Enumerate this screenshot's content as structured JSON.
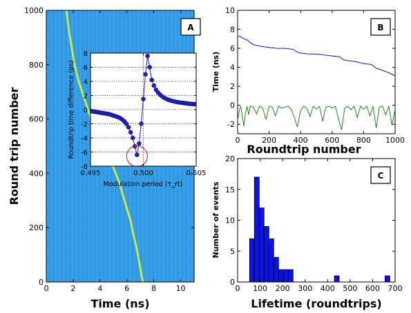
{
  "colors": {
    "heatmap_bg": "#2e9ae6",
    "trace": "#c9e84a",
    "blue": "#1414e0",
    "green": "#1f8a1f",
    "bar": "#0a14e6",
    "marker": "#2020c8",
    "circle": "#e03030"
  },
  "chart_data": [
    {
      "panel": "A",
      "type": "heatmap",
      "xlabel": "Time (ns)",
      "ylabel": "Round trip number",
      "xlim": [
        0,
        11
      ],
      "ylim": [
        0,
        1000
      ],
      "xticks": [
        "0",
        "2",
        "4",
        "6",
        "8",
        "10"
      ],
      "yticks": [
        "0",
        "200",
        "400",
        "600",
        "800",
        "1000"
      ],
      "trace": {
        "x": [
          1.5,
          1.6,
          1.7,
          1.9,
          2.1,
          2.4,
          2.8,
          3.2,
          3.6,
          4.0,
          4.5,
          5.0,
          5.4,
          5.7,
          6.0,
          6.3,
          6.5,
          6.7,
          6.85,
          7.0,
          7.1,
          7.2
        ],
        "y": [
          1000,
          960,
          920,
          860,
          800,
          740,
          680,
          620,
          570,
          520,
          470,
          420,
          370,
          320,
          270,
          220,
          170,
          130,
          90,
          50,
          20,
          0
        ]
      },
      "inset": {
        "xlabel": "Modulation period (τ_rt)",
        "ylabel": "Roundtrip time difference (ps)",
        "xlim": [
          0.495,
          0.505
        ],
        "ylim": [
          -8,
          8
        ],
        "xticks": [
          "0.495",
          "0.500",
          "0.505"
        ],
        "yticks": [
          "8",
          "6",
          "4",
          "2",
          "0",
          "-2",
          "-4",
          "-6",
          "-8"
        ],
        "grid": "dotted",
        "x": [
          0.495,
          0.4952,
          0.4954,
          0.4956,
          0.4958,
          0.496,
          0.4962,
          0.4964,
          0.4966,
          0.4968,
          0.497,
          0.4972,
          0.4974,
          0.4976,
          0.4978,
          0.498,
          0.4982,
          0.4984,
          0.4986,
          0.4988,
          0.499,
          0.4992,
          0.4994,
          0.4996,
          0.4998,
          0.5,
          0.5002,
          0.5004,
          0.5006,
          0.5008,
          0.501,
          0.5012,
          0.5014,
          0.5016,
          0.5018,
          0.502,
          0.5022,
          0.5024,
          0.5026,
          0.5028,
          0.503,
          0.5032,
          0.5034,
          0.5036,
          0.5038,
          0.504,
          0.5042,
          0.5044,
          0.5046,
          0.5048,
          0.505
        ],
        "y": [
          -0.2,
          -0.25,
          -0.3,
          -0.35,
          -0.4,
          -0.45,
          -0.5,
          -0.55,
          -0.6,
          -0.65,
          -0.75,
          -0.85,
          -0.95,
          -1.05,
          -1.2,
          -1.4,
          -1.65,
          -2.0,
          -2.5,
          -3.2,
          -4.0,
          -5.2,
          -6.4,
          -4.8,
          -2.0,
          1.5,
          5.0,
          7.6,
          6.0,
          4.2,
          3.4,
          2.8,
          2.4,
          2.1,
          1.85,
          1.65,
          1.5,
          1.38,
          1.28,
          1.2,
          1.13,
          1.07,
          1.02,
          0.98,
          0.94,
          0.9,
          0.86,
          0.83,
          0.8,
          0.78,
          0.76
        ]
      }
    },
    {
      "panel": "B",
      "type": "line",
      "xlabel": "Roundtrip number",
      "ylabel": "Time (ns)",
      "xlim": [
        0,
        1000
      ],
      "ylim": [
        -3,
        10
      ],
      "xticks": [
        "0",
        "200",
        "400",
        "600",
        "800",
        "1000"
      ],
      "yticks": [
        "10",
        "8",
        "6",
        "4",
        "2",
        "0",
        "-2"
      ],
      "series": [
        {
          "x": [
            0,
            20,
            40,
            60,
            80,
            100,
            150,
            200,
            250,
            300,
            350,
            380,
            400,
            450,
            500,
            550,
            600,
            650,
            670,
            700,
            750,
            800,
            850,
            880,
            900,
            950,
            1000
          ],
          "y": [
            7.3,
            7.2,
            7.0,
            6.9,
            6.6,
            6.4,
            6.2,
            6.1,
            6.0,
            6.0,
            5.9,
            5.6,
            5.5,
            5.4,
            5.4,
            5.3,
            5.2,
            5.1,
            4.8,
            4.7,
            4.6,
            4.4,
            4.3,
            3.9,
            3.8,
            3.5,
            3.1
          ]
        },
        {
          "x": [
            0,
            10,
            20,
            30,
            40,
            50,
            60,
            70,
            80,
            100,
            120,
            140,
            160,
            180,
            200,
            220,
            240,
            260,
            280,
            300,
            320,
            340,
            360,
            380,
            400,
            420,
            440,
            460,
            480,
            500,
            520,
            540,
            560,
            580,
            600,
            620,
            640,
            660,
            680,
            700,
            720,
            740,
            760,
            780,
            800,
            820,
            840,
            860,
            880,
            900,
            920,
            940,
            960,
            980,
            1000
          ],
          "y": [
            -1.6,
            -0.6,
            -0.1,
            -1.2,
            -2.2,
            -0.8,
            -0.1,
            -1.0,
            -0.1,
            -0.2,
            -0.9,
            -0.1,
            -0.3,
            -1.5,
            -0.1,
            -0.2,
            -1.1,
            -0.1,
            -0.3,
            -0.2,
            -0.1,
            -0.4,
            -1.3,
            -2.3,
            -0.5,
            -0.1,
            -0.3,
            -1.2,
            -0.1,
            -0.4,
            -0.1,
            -1.7,
            -0.2,
            -0.1,
            -0.3,
            -0.1,
            -1.4,
            -2.6,
            -0.3,
            -0.1,
            -0.5,
            -0.1,
            -1.3,
            -0.1,
            -0.4,
            -0.1,
            -1.1,
            -0.1,
            -2.4,
            -0.2,
            -0.1,
            -1.0,
            -0.1,
            -2.1,
            -0.4
          ]
        }
      ]
    },
    {
      "panel": "C",
      "type": "bar",
      "xlabel": "Lifetime (roundtrips)",
      "ylabel": "Number of events",
      "xlim": [
        0,
        700
      ],
      "ylim": [
        0,
        20
      ],
      "xticks": [
        "0",
        "100",
        "200",
        "300",
        "400",
        "500",
        "600",
        "700"
      ],
      "yticks": [
        "0",
        "5",
        "10",
        "15",
        "20"
      ],
      "bin_width": 21.5,
      "bin_start": [
        53,
        74.5,
        96,
        117.5,
        139,
        160.5,
        182,
        203.5,
        225,
        430,
        655
      ],
      "counts": [
        7,
        17,
        12,
        9,
        7,
        4,
        2,
        2,
        2,
        1,
        1
      ]
    }
  ],
  "panel_labels": {
    "a": "A",
    "b": "B",
    "c": "C"
  }
}
